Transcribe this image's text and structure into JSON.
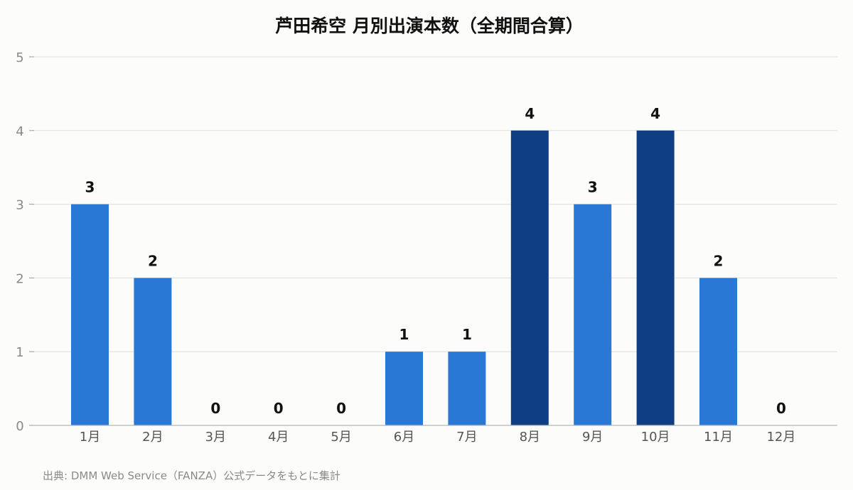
{
  "chart_data": {
    "type": "bar",
    "title": "芦田希空 月別出演本数（全期間合算）",
    "categories": [
      "1月",
      "2月",
      "3月",
      "4月",
      "5月",
      "6月",
      "7月",
      "8月",
      "9月",
      "10月",
      "11月",
      "12月"
    ],
    "values": [
      3,
      2,
      0,
      0,
      0,
      1,
      1,
      4,
      3,
      4,
      2,
      0
    ],
    "xlabel": "",
    "ylabel": "",
    "ylim": [
      0,
      5
    ],
    "yticks": [
      0,
      1,
      2,
      3,
      4,
      5
    ],
    "grid": true,
    "legend": "none",
    "colors": {
      "bar": "#2a78d6",
      "bar_max": "#0f3f82"
    }
  },
  "source_note": "出典: DMM Web Service（FANZA）公式データをもとに集計"
}
